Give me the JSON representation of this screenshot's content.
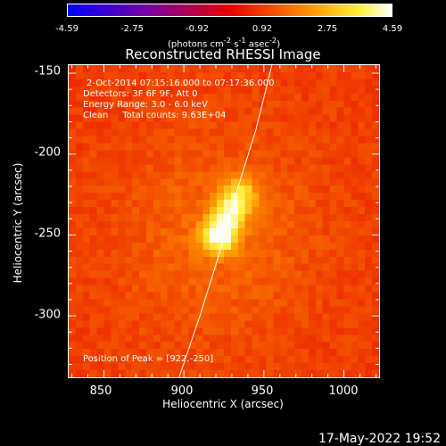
{
  "colorbar": {
    "tick_labels": [
      "-4.59",
      "-2.75",
      "-0.92",
      "0.92",
      "2.75",
      "4.59"
    ],
    "units_html": "(photons cm<sup>-2</sup> s<sup>-1</sup> asec<sup>-2</sup>)",
    "units_text": "(photons cm-2 s-1 asec-2)"
  },
  "title": "Reconstructed RHESSI Image",
  "info": {
    "time_range": "2-Oct-2014 07:15:16.000 to 07:17:36.000",
    "detectors": "Detectors: 3F 6F 9F, Att 0",
    "energy_range": "Energy Range: 3.0 - 6.0 keV",
    "method": "Clean     Total counts: 9.63E+04",
    "peak": "Position of Peak = [922,-250]"
  },
  "axes": {
    "xlabel": "Heliocentric X (arcsec)",
    "ylabel": "Heliocentric Y (arcsec)",
    "xticks": [
      "850",
      "900",
      "950",
      "1000"
    ],
    "yticks": [
      "-150",
      "-200",
      "-250",
      "-300"
    ]
  },
  "timestamp": "17-May-2022 19:52",
  "chart_data": {
    "type": "heatmap",
    "title": "Reconstructed RHESSI Image",
    "xlabel": "Heliocentric X (arcsec)",
    "ylabel": "Heliocentric Y (arcsec)",
    "xlim": [
      828,
      1022
    ],
    "ylim": [
      -338,
      -145
    ],
    "color_scale": {
      "min": -4.59,
      "max": 4.59,
      "colormap": "blue-purple-red-yellow-white"
    },
    "source": {
      "peak_x": 922,
      "peak_y": -250,
      "peak_value": 4.59,
      "elongated_toward": [
        935,
        -225
      ]
    },
    "limb_curve": [
      [
        897,
        -338
      ],
      [
        910,
        -300
      ],
      [
        922,
        -262
      ],
      [
        934,
        -220
      ],
      [
        945,
        -185
      ],
      [
        955,
        -145
      ]
    ]
  },
  "colors": {
    "background": "#000000",
    "text": "#ffffff"
  }
}
